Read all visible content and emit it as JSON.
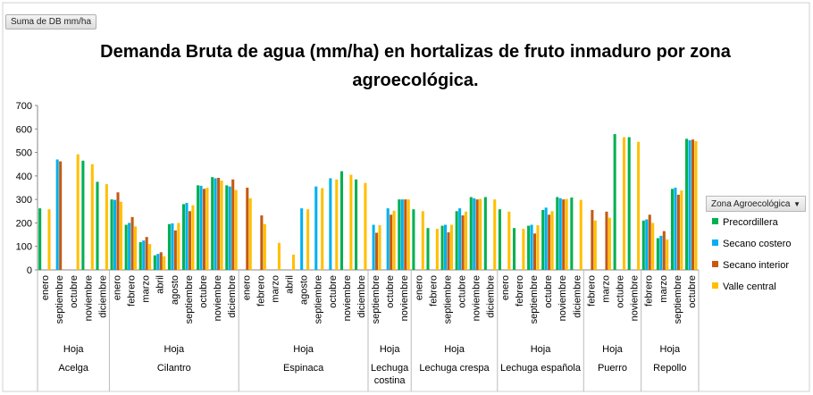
{
  "chart_data": {
    "type": "bar",
    "title": "Demanda Bruta de agua (mm/ha) en hortalizas de fruto inmaduro por zona agroecológica.",
    "field_button": "Suma de DB mm/ha",
    "legend_title": "Zona Agroecológica",
    "legend_position": "right",
    "grid": false,
    "ylim": [
      0,
      700
    ],
    "yticks": [
      0,
      100,
      200,
      300,
      400,
      500,
      600,
      700
    ],
    "groups": [
      {
        "name": "Acelga",
        "subgroup": "Hoja",
        "categories": [
          "enero",
          "septiembre",
          "octubre",
          "noviembre",
          "diciembre"
        ]
      },
      {
        "name": "Cilantro",
        "subgroup": "Hoja",
        "categories": [
          "enero",
          "febrero",
          "marzo",
          "abril",
          "agosto",
          "septiembre",
          "octubre",
          "noviembre",
          "diciembre"
        ]
      },
      {
        "name": "Espinaca",
        "subgroup": "Hoja",
        "categories": [
          "enero",
          "febrero",
          "marzo",
          "abril",
          "agosto",
          "septiembre",
          "octubre",
          "noviembre",
          "diciembre"
        ]
      },
      {
        "name": "Lechuga costina",
        "subgroup": "Hoja",
        "categories": [
          "septiembre",
          "octubre",
          "noviembre"
        ]
      },
      {
        "name": "Lechuga crespa",
        "subgroup": "Hoja",
        "categories": [
          "enero",
          "febrero",
          "septiembre",
          "octubre",
          "noviembre",
          "diciembre"
        ]
      },
      {
        "name": "Lechuga española",
        "subgroup": "Hoja",
        "categories": [
          "enero",
          "febrero",
          "septiembre",
          "octubre",
          "noviembre",
          "diciembre"
        ]
      },
      {
        "name": "Puerro",
        "subgroup": "Hoja",
        "categories": [
          "febrero",
          "marzo",
          "octubre",
          "noviembre"
        ]
      },
      {
        "name": "Repollo",
        "subgroup": "Hoja",
        "categories": [
          "febrero",
          "marzo",
          "septiembre",
          "octubre"
        ]
      }
    ],
    "series": [
      {
        "name": "Precordillera",
        "color": "#00b050",
        "values": [
          262,
          null,
          null,
          465,
          375,
          300,
          192,
          118,
          62,
          195,
          280,
          360,
          395,
          360,
          null,
          null,
          null,
          null,
          null,
          null,
          null,
          420,
          385,
          null,
          null,
          300,
          258,
          178,
          188,
          250,
          310,
          310,
          258,
          178,
          188,
          255,
          310,
          308,
          null,
          null,
          578,
          565,
          210,
          135,
          345,
          558
        ]
      },
      {
        "name": "Secano costero",
        "color": "#00b0f0",
        "values": [
          null,
          470,
          null,
          null,
          null,
          298,
          200,
          125,
          68,
          198,
          285,
          358,
          390,
          355,
          null,
          null,
          null,
          null,
          262,
          355,
          390,
          null,
          null,
          192,
          262,
          300,
          null,
          null,
          192,
          262,
          305,
          null,
          null,
          null,
          192,
          265,
          305,
          null,
          null,
          null,
          null,
          null,
          215,
          145,
          350,
          552
        ]
      },
      {
        "name": "Secano interior",
        "color": "#c55a11",
        "values": [
          null,
          462,
          null,
          null,
          null,
          330,
          225,
          140,
          75,
          168,
          250,
          345,
          392,
          385,
          350,
          232,
          null,
          null,
          null,
          null,
          null,
          null,
          null,
          158,
          235,
          300,
          null,
          null,
          160,
          232,
          300,
          null,
          null,
          null,
          155,
          235,
          300,
          null,
          255,
          248,
          null,
          null,
          235,
          165,
          320,
          555
        ]
      },
      {
        "name": "Valle central",
        "color": "#ffc000",
        "values": [
          258,
          null,
          492,
          450,
          365,
          290,
          185,
          110,
          58,
          200,
          275,
          350,
          380,
          340,
          305,
          195,
          115,
          65,
          258,
          348,
          385,
          405,
          370,
          190,
          252,
          300,
          250,
          175,
          192,
          248,
          302,
          300,
          248,
          175,
          190,
          250,
          302,
          298,
          210,
          222,
          565,
          545,
          200,
          130,
          338,
          548
        ]
      }
    ]
  }
}
